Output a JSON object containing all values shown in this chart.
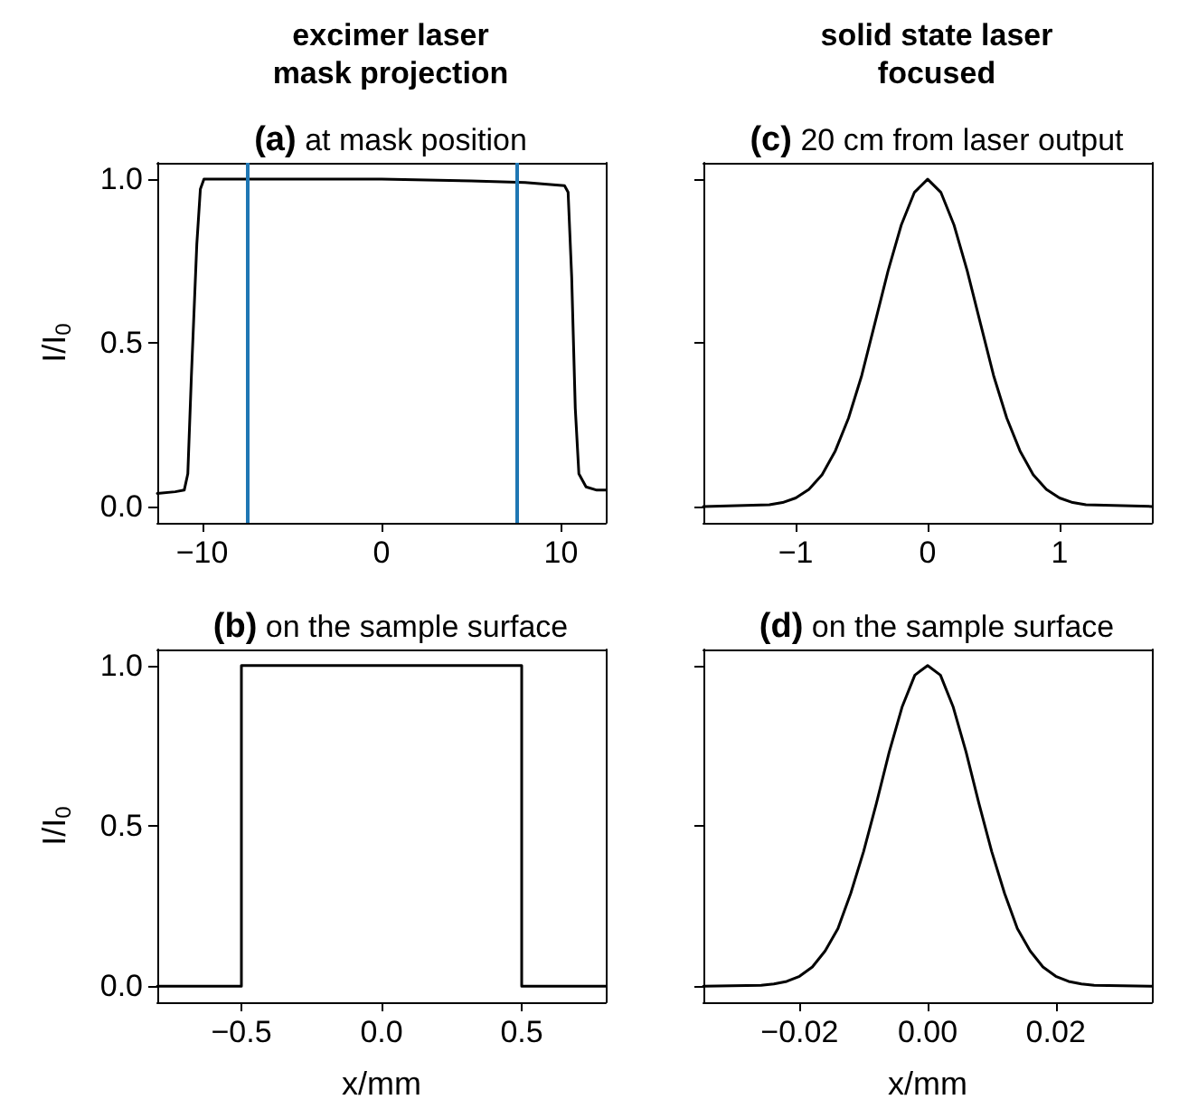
{
  "chart_data": [
    {
      "type": "line",
      "title": "excimer laser\nmask projection",
      "subtitle": "(a) at mask position",
      "ylabel": "I/I$_{0}$",
      "marker": "none",
      "line_style": "solid",
      "x": [
        -12.5,
        -11.5,
        -11,
        -10.8,
        -10.6,
        -10.3,
        -10.1,
        -9.9,
        -8,
        -5,
        0,
        5,
        8,
        10.2,
        10.4,
        10.6,
        10.8,
        11,
        11.4,
        12,
        12.5
      ],
      "series": [
        {
          "color": "#000000",
          "values": [
            0.04,
            0.045,
            0.05,
            0.1,
            0.4,
            0.8,
            0.97,
            1.0,
            1.0,
            1.0,
            1.0,
            0.995,
            0.99,
            0.98,
            0.96,
            0.7,
            0.3,
            0.1,
            0.06,
            0.05,
            0.05
          ]
        }
      ],
      "ref_lines": [
        {
          "axis": "x",
          "value": -7.5,
          "color": "#1f77b4"
        },
        {
          "axis": "x",
          "value": 7.5,
          "color": "#1f77b4"
        }
      ],
      "xlim": [
        -12.5,
        12.5
      ],
      "xticks": [
        {
          "value": -10,
          "label": "−10"
        },
        0,
        10
      ],
      "ylim": [
        -0.05,
        1.05
      ],
      "yticks": [
        {
          "value": 0,
          "label": "0.0"
        },
        {
          "value": 0.5,
          "label": "0.5"
        },
        {
          "value": 1,
          "label": "1.0"
        }
      ]
    },
    {
      "type": "line",
      "title": "solid state laser\nfocused",
      "subtitle": "(c) 20 cm from laser output",
      "marker": "none",
      "line_style": "solid",
      "tick_labels": "x",
      "x": [
        -1.7,
        -1.2,
        -1.1,
        -1,
        -0.9,
        -0.8,
        -0.7,
        -0.6,
        -0.5,
        -0.4,
        -0.3,
        -0.2,
        -0.1,
        0,
        0.1,
        0.2,
        0.3,
        0.4,
        0.5,
        0.6,
        0.7,
        0.8,
        0.9,
        1,
        1.1,
        1.2,
        1.7
      ],
      "series": [
        {
          "color": "#000000",
          "values": [
            0,
            0.005,
            0.012,
            0.026,
            0.052,
            0.097,
            0.17,
            0.27,
            0.4,
            0.56,
            0.72,
            0.86,
            0.96,
            1,
            0.96,
            0.86,
            0.72,
            0.56,
            0.4,
            0.27,
            0.17,
            0.097,
            0.052,
            0.026,
            0.012,
            0.005,
            0
          ]
        }
      ],
      "xlim": [
        -1.7,
        1.7
      ],
      "xticks": [
        {
          "value": -1,
          "label": "−1"
        },
        0,
        1
      ],
      "ylim": [
        -0.05,
        1.05
      ],
      "yticks": [
        {
          "value": 0,
          "label": null
        },
        {
          "value": 0.5,
          "label": null
        },
        {
          "value": 1,
          "label": null
        }
      ]
    },
    {
      "type": "line",
      "subtitle": "(b) on the sample surface",
      "ylabel": "I/I$_{0}$",
      "xlabel": "x/mm",
      "marker": "none",
      "line_style": "solid",
      "x": [
        -0.8,
        -0.5,
        -0.5,
        0.5,
        0.5,
        0.8
      ],
      "series": [
        {
          "color": "#000000",
          "values": [
            0,
            0,
            1,
            1,
            0,
            0
          ]
        }
      ],
      "xlim": [
        -0.8,
        0.8
      ],
      "xticks": [
        {
          "value": -0.5,
          "label": "−0.5"
        },
        {
          "value": 0,
          "label": "0.0"
        },
        {
          "value": 0.5,
          "label": "0.5"
        }
      ],
      "ylim": [
        -0.05,
        1.05
      ],
      "yticks": [
        {
          "value": 0,
          "label": "0.0"
        },
        {
          "value": 0.5,
          "label": "0.5"
        },
        {
          "value": 1,
          "label": "1.0"
        }
      ]
    },
    {
      "type": "line",
      "subtitle": "(d) on the sample surface",
      "xlabel": "x/mm",
      "marker": "none",
      "line_style": "solid",
      "tick_labels": "x",
      "x": [
        -0.035,
        -0.026,
        -0.024,
        -0.022,
        -0.02,
        -0.018,
        -0.016,
        -0.014,
        -0.012,
        -0.01,
        -0.008,
        -0.006,
        -0.004,
        -0.002,
        0,
        0.002,
        0.004,
        0.006,
        0.008,
        0.01,
        0.012,
        0.014,
        0.016,
        0.018,
        0.02,
        0.022,
        0.024,
        0.026,
        0.035
      ],
      "series": [
        {
          "color": "#000000",
          "values": [
            0,
            0.003,
            0.007,
            0.015,
            0.031,
            0.06,
            0.11,
            0.18,
            0.29,
            0.42,
            0.57,
            0.73,
            0.87,
            0.97,
            1,
            0.97,
            0.87,
            0.73,
            0.57,
            0.42,
            0.29,
            0.18,
            0.11,
            0.06,
            0.031,
            0.015,
            0.007,
            0.003,
            0
          ]
        }
      ],
      "xlim": [
        -0.035,
        0.035
      ],
      "xticks": [
        {
          "value": -0.02,
          "label": "−0.02"
        },
        {
          "value": 0,
          "label": "0.00"
        },
        {
          "value": 0.02,
          "label": "0.02"
        }
      ],
      "ylim": [
        -0.05,
        1.05
      ],
      "yticks": [
        {
          "value": 0,
          "label": null
        },
        {
          "value": 0.5,
          "label": null
        },
        {
          "value": 1,
          "label": null
        }
      ]
    }
  ]
}
